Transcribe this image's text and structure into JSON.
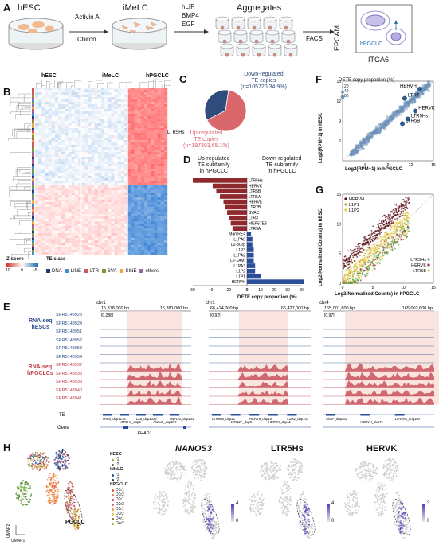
{
  "panels": {
    "A": "A",
    "B": "B",
    "C": "C",
    "D": "D",
    "E": "E",
    "F": "F",
    "G": "G",
    "H": "H"
  },
  "a": {
    "stage1": "hESC",
    "stage2": "iMeLC",
    "stage3": "Aggregates",
    "arrow1": [
      "Activin A",
      "Chiron"
    ],
    "arrow2": [
      "hLIF",
      "BMP4",
      "EGF"
    ],
    "arrow3": "FACS",
    "facs_y": "EPCAM",
    "facs_x": "ITGA6",
    "facs_gate": "hPGCLC"
  },
  "b": {
    "col_groups": [
      "hESC",
      "iMeLC",
      "hPGCLC"
    ],
    "row_label": "LTR5Hs",
    "zscore_title": "Z-score",
    "zscore_ticks": [
      "10",
      "0",
      "-5"
    ],
    "te_class_title": "TE class",
    "te_classes": [
      {
        "name": "DNA",
        "color": "#1f3d7a"
      },
      {
        "name": "LINE",
        "color": "#3f8fc9"
      },
      {
        "name": "LTR",
        "color": "#d3545c"
      },
      {
        "name": "SVA",
        "color": "#7a9a3a"
      },
      {
        "name": "SINE",
        "color": "#f0a347"
      },
      {
        "name": "others",
        "color": "#8c6bb1"
      }
    ]
  },
  "c": {
    "down_label": [
      "Down-regulated",
      "TE copies",
      "(n=105720,34.9%)"
    ],
    "up_label": [
      "Up-regulated",
      "TE copies",
      "(n=197393,65.1%)"
    ],
    "up_color": "#d9676c",
    "down_color": "#2e4d7c",
    "pie": [
      {
        "name": "Up-regulated",
        "value": 65.1
      },
      {
        "name": "Down-regulated",
        "value": 34.9
      }
    ]
  },
  "d": {
    "left_title": [
      "Up-regulated",
      "TE subfamily",
      "in hPGCLC"
    ],
    "right_title": [
      "Down-regulated",
      "TE subfamily",
      "in hPGCLC"
    ],
    "xlabel": "DETE copy proportion (%)",
    "left_ticks": [
      "60",
      "40",
      "20",
      "0"
    ],
    "right_ticks": [
      "0",
      "10",
      "20",
      "30",
      "40"
    ]
  },
  "chart_data": [
    {
      "type": "bar",
      "title": "",
      "xlabel": "DETE copy proportion (%)",
      "ylabel": "",
      "categories": [
        "LTR5Hs",
        "HERVK",
        "LTR5B",
        "LTR5A",
        "HERVE",
        "LTR2B",
        "SVAC",
        "LTR3",
        "MER57E3",
        "LTR3A",
        "MamRE4",
        "L1PA6",
        "L2-3Crp",
        "L1P3",
        "L1PA2",
        "L2-1AMI",
        "L1PA3",
        "L1P2",
        "L1P1",
        "HERVH"
      ],
      "series": [
        {
          "name": "Up-regulated TE subfamily in hPGCLC",
          "values": [
            60,
            38,
            34,
            30,
            26,
            24,
            22,
            20,
            18,
            16,
            0,
            0,
            0,
            0,
            0,
            0,
            0,
            0,
            0,
            0
          ]
        },
        {
          "name": "Down-regulated TE subfamily in hPGCLC",
          "values": [
            0,
            0,
            0,
            0,
            0,
            0,
            0,
            0,
            0,
            0,
            3,
            4,
            4,
            5,
            5,
            5,
            6,
            6,
            10,
            42
          ]
        }
      ],
      "xlim": [
        60,
        40
      ]
    },
    {
      "type": "scatter",
      "title": "",
      "xlabel": "Log2(RPM+1) in hPGCLC",
      "ylabel": "Log2(RPM+1) in hESC",
      "xlim": [
        3,
        15
      ],
      "ylim": [
        3,
        15
      ],
      "legend_title": "DETE copy proportion (%)",
      "size_legend": [
        "20",
        "40",
        "60"
      ],
      "labeled_points": [
        {
          "name": "HERVH",
          "x": 13.2,
          "y": 13.8
        },
        {
          "name": "LTR7",
          "x": 11.2,
          "y": 12.4
        },
        {
          "name": "HERVK",
          "x": 12.6,
          "y": 10.5
        },
        {
          "name": "LTR5Hs",
          "x": 11.6,
          "y": 9.3
        },
        {
          "name": "LTR5B",
          "x": 10.9,
          "y": 8.6
        }
      ]
    },
    {
      "type": "scatter",
      "title": "",
      "xlabel": "Log2(Normalized Counts) in hPGCLC",
      "ylabel": "Log2(Normalized Counts) in hESC",
      "xlim": [
        0,
        15
      ],
      "ylim": [
        0,
        15
      ],
      "series": [
        {
          "name": "HERVH",
          "color": "#5a1018"
        },
        {
          "name": "L1P1",
          "color": "#c8a020"
        },
        {
          "name": "L1P2",
          "color": "#e8d040"
        },
        {
          "name": "LTR5Hs",
          "color": "#4caf50"
        },
        {
          "name": "HERVK",
          "color": "#9c2a4a"
        },
        {
          "name": "LTR5B",
          "color": "#e0c040"
        }
      ]
    }
  ],
  "f": {
    "xlabel": "Log2(RPM+1) in hPGCLC",
    "ylabel": "Log2(RPM+1) in hESC",
    "legend_title": "DETE copy proportion (%)",
    "sizes": [
      "20",
      "40",
      "60"
    ],
    "xticks": [
      "6",
      "9",
      "12",
      "15"
    ],
    "yticks": [
      "6",
      "9",
      "12",
      "15"
    ],
    "labels": {
      "HERVH": "HERVH",
      "LTR7": "LTR7",
      "HERVK": "HERVK",
      "LTR5Hs": "LTR5Hs",
      "LTR5B": "LTR5B"
    }
  },
  "g": {
    "xlabel": "Log2(Normalized Counts) in hPGCLC",
    "ylabel": "Log2(Normalized Counts) in hESC",
    "xticks": [
      "0",
      "5",
      "10",
      "15"
    ],
    "yticks": [
      "0",
      "5",
      "10",
      "15"
    ],
    "legend_top": [
      "HERVH",
      "L1P1",
      "L1P2"
    ],
    "legend_bottom": [
      "LTR5Hs",
      "HERVK",
      "LTR5B"
    ]
  },
  "e": {
    "group_hesc": [
      "RNA-seq",
      "hESCs"
    ],
    "group_pgclc": [
      "RNA-seq",
      "hPGCLCs"
    ],
    "samples_hesc": [
      "SRR5143923",
      "SRR5143924",
      "SRR5143951",
      "SRR5143952",
      "SRR5143953",
      "SRR5143954"
    ],
    "samples_pgclc": [
      "SRR5143937",
      "SRR5143938",
      "SRR5143939",
      "SRR5143940",
      "SRR5143941"
    ],
    "te_label": "TE",
    "gene_label": "Gene",
    "loci": [
      {
        "chr": "chr1",
        "start": "15,378,000 bp",
        "end": "15,381,000 bp",
        "range": "[0,288]",
        "tes": [
          "MIRb_dup1215",
          "LTR5Hs_dup6",
          "L2a_dup1026",
          "AluSx5_dup277",
          "MER20_dup131"
        ],
        "gene": "FHAD1"
      },
      {
        "chr": "chr1",
        "start": "66,424,000 bp",
        "end": "66,427,000 bp",
        "range": "[0,92]",
        "tes": [
          "LTR5Hs_dup21",
          "LTR12F_dup9",
          "HERV9_dup10",
          "HERVK_dup11",
          "L1M2_dup141"
        ],
        "gene": ""
      },
      {
        "chr": "chr4",
        "start": "165,001,800 bp",
        "end": "165,002,600 bp",
        "range": "[0,97]",
        "tes": [
          "SVAF_dup262",
          "HERVH_dup71",
          "LTR5Hs_dup180"
        ],
        "gene": ""
      }
    ]
  },
  "h": {
    "umap_x": "UMAP1",
    "umap_y": "UMAP2",
    "pgclc_label": "PGCLC",
    "legend": [
      {
        "group": "hESC",
        "items": [
          {
            "name": "r1",
            "color": "#6fae3a"
          },
          {
            "name": "r2",
            "color": "#3a7a2a"
          }
        ]
      },
      {
        "group": "iMeLC",
        "items": [
          {
            "name": "r1",
            "color": "#2f4f9a"
          },
          {
            "name": "r2",
            "color": "#1a2f6a"
          }
        ]
      },
      {
        "group": "hPGCLC",
        "items": [
          {
            "name": "D1r1",
            "color": "#e8533a"
          },
          {
            "name": "D1r2",
            "color": "#f07c4a"
          },
          {
            "name": "D2r1",
            "color": "#c43a5a"
          },
          {
            "name": "D2r2",
            "color": "#d65a7a"
          },
          {
            "name": "D3r1",
            "color": "#e8a030"
          },
          {
            "name": "D3r2",
            "color": "#f0c040"
          },
          {
            "name": "D4r1",
            "color": "#9a6a3a"
          },
          {
            "name": "D4r2",
            "color": "#c0904a"
          }
        ]
      }
    ],
    "genes": [
      {
        "name": "NANOS3",
        "max": "4",
        "min": "0",
        "italic": true
      },
      {
        "name": "LTR5Hs",
        "max": "4",
        "min": "0",
        "italic": false
      },
      {
        "name": "HERVK",
        "max": "3",
        "min": "0",
        "italic": false
      }
    ]
  }
}
